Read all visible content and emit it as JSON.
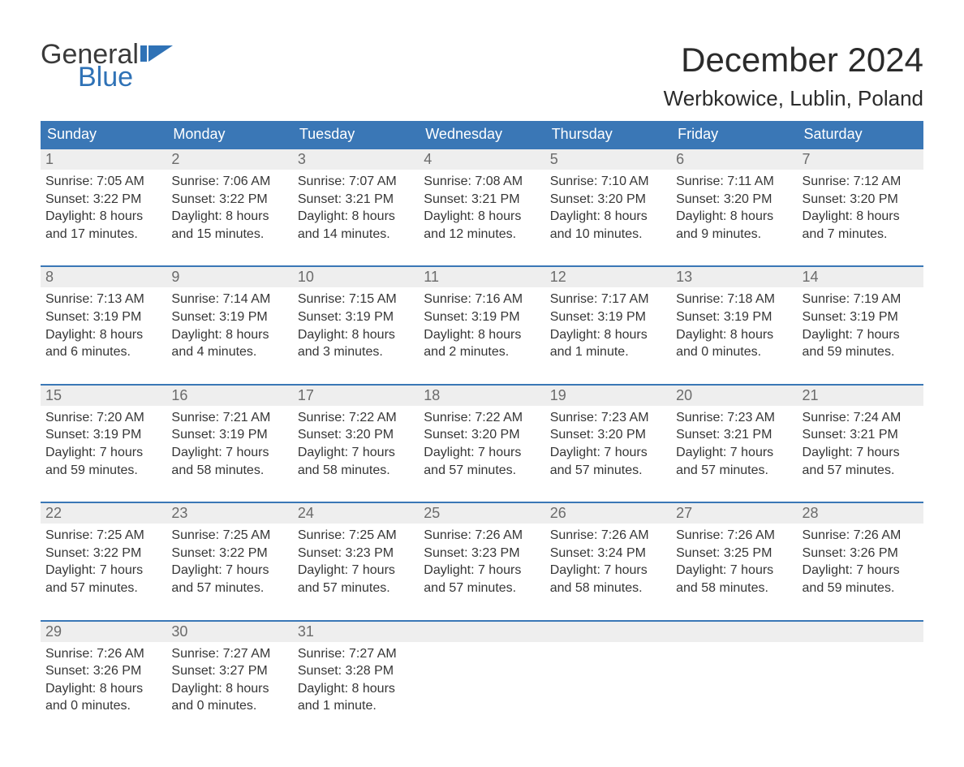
{
  "brand": {
    "word1": "General",
    "word2": "Blue",
    "flag_color": "#2f72b6"
  },
  "title": "December 2024",
  "location": "Werbkowice, Lublin, Poland",
  "colors": {
    "header_bg": "#3a77b6",
    "header_text": "#ffffff",
    "daynum_bg": "#eeeeee",
    "daynum_text": "#6b6b6b",
    "body_text": "#363636",
    "week_border": "#3a77b6",
    "page_bg": "#ffffff",
    "logo_general": "#3a3a3a",
    "logo_blue": "#2f72b6"
  },
  "day_headers": [
    "Sunday",
    "Monday",
    "Tuesday",
    "Wednesday",
    "Thursday",
    "Friday",
    "Saturday"
  ],
  "weeks": [
    [
      {
        "n": "1",
        "sr": "Sunrise: 7:05 AM",
        "ss": "Sunset: 3:22 PM",
        "d1": "Daylight: 8 hours",
        "d2": "and 17 minutes."
      },
      {
        "n": "2",
        "sr": "Sunrise: 7:06 AM",
        "ss": "Sunset: 3:22 PM",
        "d1": "Daylight: 8 hours",
        "d2": "and 15 minutes."
      },
      {
        "n": "3",
        "sr": "Sunrise: 7:07 AM",
        "ss": "Sunset: 3:21 PM",
        "d1": "Daylight: 8 hours",
        "d2": "and 14 minutes."
      },
      {
        "n": "4",
        "sr": "Sunrise: 7:08 AM",
        "ss": "Sunset: 3:21 PM",
        "d1": "Daylight: 8 hours",
        "d2": "and 12 minutes."
      },
      {
        "n": "5",
        "sr": "Sunrise: 7:10 AM",
        "ss": "Sunset: 3:20 PM",
        "d1": "Daylight: 8 hours",
        "d2": "and 10 minutes."
      },
      {
        "n": "6",
        "sr": "Sunrise: 7:11 AM",
        "ss": "Sunset: 3:20 PM",
        "d1": "Daylight: 8 hours",
        "d2": "and 9 minutes."
      },
      {
        "n": "7",
        "sr": "Sunrise: 7:12 AM",
        "ss": "Sunset: 3:20 PM",
        "d1": "Daylight: 8 hours",
        "d2": "and 7 minutes."
      }
    ],
    [
      {
        "n": "8",
        "sr": "Sunrise: 7:13 AM",
        "ss": "Sunset: 3:19 PM",
        "d1": "Daylight: 8 hours",
        "d2": "and 6 minutes."
      },
      {
        "n": "9",
        "sr": "Sunrise: 7:14 AM",
        "ss": "Sunset: 3:19 PM",
        "d1": "Daylight: 8 hours",
        "d2": "and 4 minutes."
      },
      {
        "n": "10",
        "sr": "Sunrise: 7:15 AM",
        "ss": "Sunset: 3:19 PM",
        "d1": "Daylight: 8 hours",
        "d2": "and 3 minutes."
      },
      {
        "n": "11",
        "sr": "Sunrise: 7:16 AM",
        "ss": "Sunset: 3:19 PM",
        "d1": "Daylight: 8 hours",
        "d2": "and 2 minutes."
      },
      {
        "n": "12",
        "sr": "Sunrise: 7:17 AM",
        "ss": "Sunset: 3:19 PM",
        "d1": "Daylight: 8 hours",
        "d2": "and 1 minute."
      },
      {
        "n": "13",
        "sr": "Sunrise: 7:18 AM",
        "ss": "Sunset: 3:19 PM",
        "d1": "Daylight: 8 hours",
        "d2": "and 0 minutes."
      },
      {
        "n": "14",
        "sr": "Sunrise: 7:19 AM",
        "ss": "Sunset: 3:19 PM",
        "d1": "Daylight: 7 hours",
        "d2": "and 59 minutes."
      }
    ],
    [
      {
        "n": "15",
        "sr": "Sunrise: 7:20 AM",
        "ss": "Sunset: 3:19 PM",
        "d1": "Daylight: 7 hours",
        "d2": "and 59 minutes."
      },
      {
        "n": "16",
        "sr": "Sunrise: 7:21 AM",
        "ss": "Sunset: 3:19 PM",
        "d1": "Daylight: 7 hours",
        "d2": "and 58 minutes."
      },
      {
        "n": "17",
        "sr": "Sunrise: 7:22 AM",
        "ss": "Sunset: 3:20 PM",
        "d1": "Daylight: 7 hours",
        "d2": "and 58 minutes."
      },
      {
        "n": "18",
        "sr": "Sunrise: 7:22 AM",
        "ss": "Sunset: 3:20 PM",
        "d1": "Daylight: 7 hours",
        "d2": "and 57 minutes."
      },
      {
        "n": "19",
        "sr": "Sunrise: 7:23 AM",
        "ss": "Sunset: 3:20 PM",
        "d1": "Daylight: 7 hours",
        "d2": "and 57 minutes."
      },
      {
        "n": "20",
        "sr": "Sunrise: 7:23 AM",
        "ss": "Sunset: 3:21 PM",
        "d1": "Daylight: 7 hours",
        "d2": "and 57 minutes."
      },
      {
        "n": "21",
        "sr": "Sunrise: 7:24 AM",
        "ss": "Sunset: 3:21 PM",
        "d1": "Daylight: 7 hours",
        "d2": "and 57 minutes."
      }
    ],
    [
      {
        "n": "22",
        "sr": "Sunrise: 7:25 AM",
        "ss": "Sunset: 3:22 PM",
        "d1": "Daylight: 7 hours",
        "d2": "and 57 minutes."
      },
      {
        "n": "23",
        "sr": "Sunrise: 7:25 AM",
        "ss": "Sunset: 3:22 PM",
        "d1": "Daylight: 7 hours",
        "d2": "and 57 minutes."
      },
      {
        "n": "24",
        "sr": "Sunrise: 7:25 AM",
        "ss": "Sunset: 3:23 PM",
        "d1": "Daylight: 7 hours",
        "d2": "and 57 minutes."
      },
      {
        "n": "25",
        "sr": "Sunrise: 7:26 AM",
        "ss": "Sunset: 3:23 PM",
        "d1": "Daylight: 7 hours",
        "d2": "and 57 minutes."
      },
      {
        "n": "26",
        "sr": "Sunrise: 7:26 AM",
        "ss": "Sunset: 3:24 PM",
        "d1": "Daylight: 7 hours",
        "d2": "and 58 minutes."
      },
      {
        "n": "27",
        "sr": "Sunrise: 7:26 AM",
        "ss": "Sunset: 3:25 PM",
        "d1": "Daylight: 7 hours",
        "d2": "and 58 minutes."
      },
      {
        "n": "28",
        "sr": "Sunrise: 7:26 AM",
        "ss": "Sunset: 3:26 PM",
        "d1": "Daylight: 7 hours",
        "d2": "and 59 minutes."
      }
    ],
    [
      {
        "n": "29",
        "sr": "Sunrise: 7:26 AM",
        "ss": "Sunset: 3:26 PM",
        "d1": "Daylight: 8 hours",
        "d2": "and 0 minutes."
      },
      {
        "n": "30",
        "sr": "Sunrise: 7:27 AM",
        "ss": "Sunset: 3:27 PM",
        "d1": "Daylight: 8 hours",
        "d2": "and 0 minutes."
      },
      {
        "n": "31",
        "sr": "Sunrise: 7:27 AM",
        "ss": "Sunset: 3:28 PM",
        "d1": "Daylight: 8 hours",
        "d2": "and 1 minute."
      },
      null,
      null,
      null,
      null
    ]
  ]
}
